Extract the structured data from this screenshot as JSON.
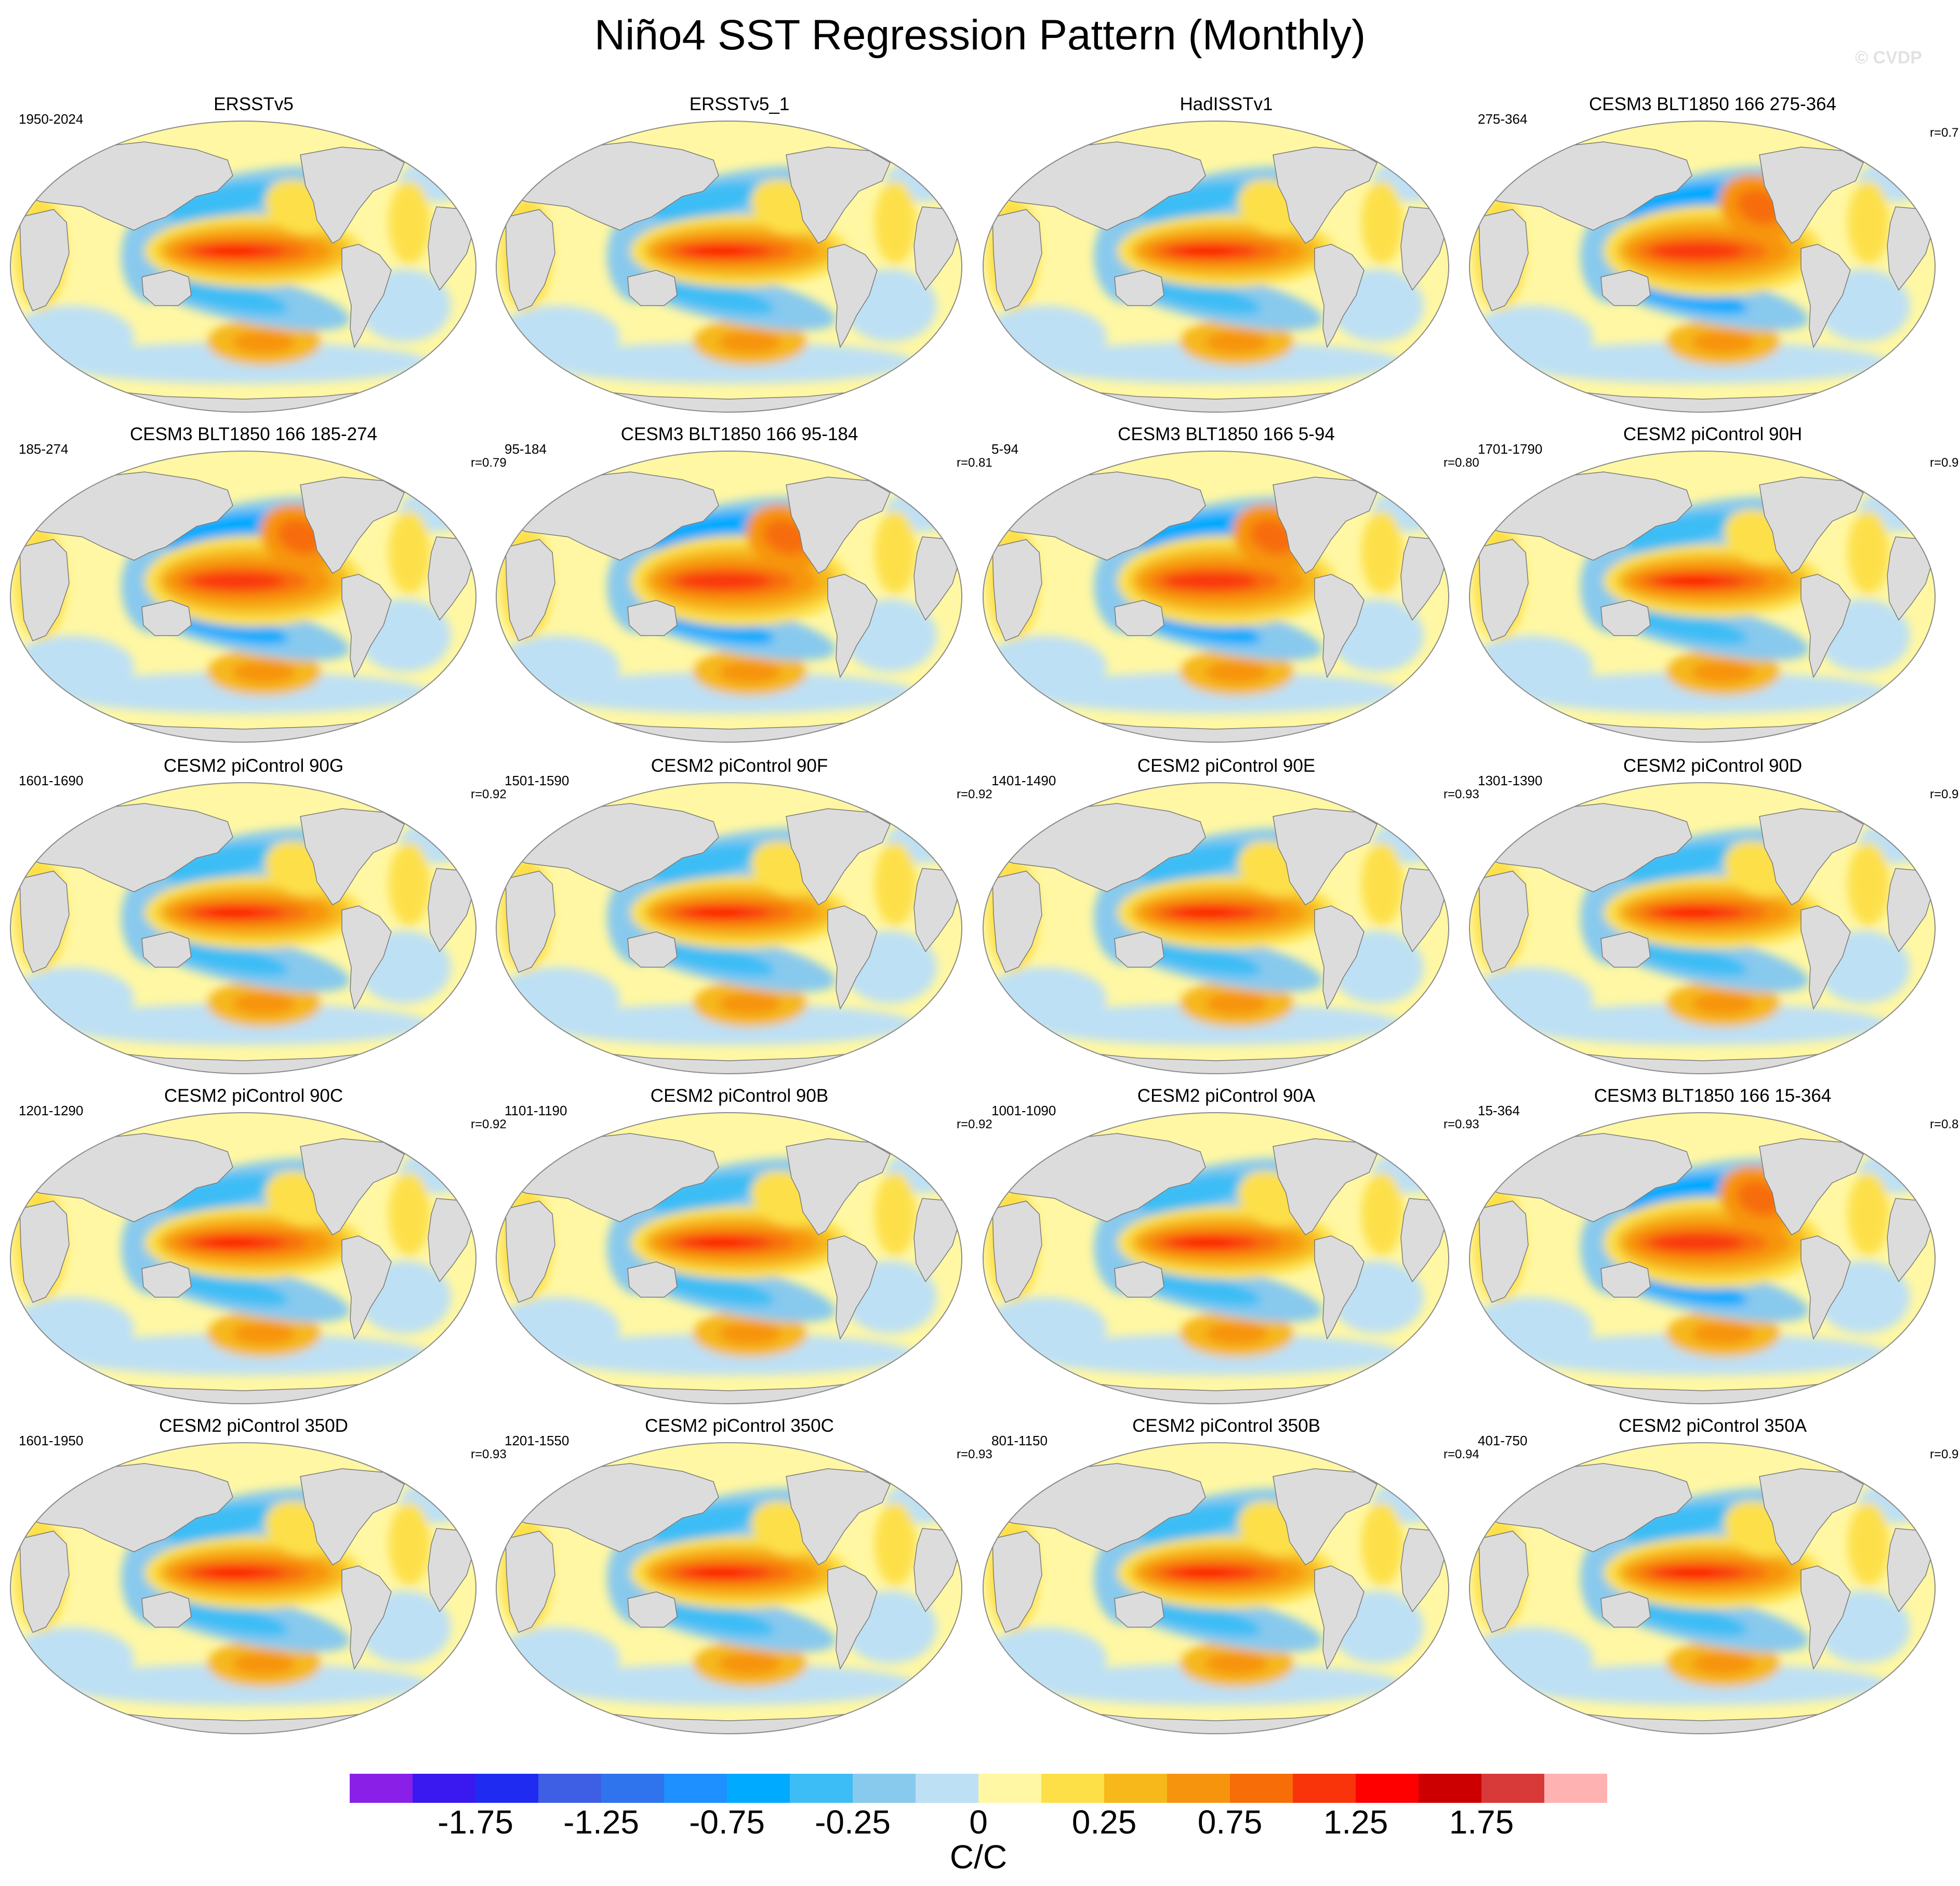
{
  "figure": {
    "title": "Niño4 SST Regression Pattern (Monthly)",
    "watermark": "© CVDP"
  },
  "panels": [
    {
      "title": "ERSSTv5",
      "years": "1950-2024",
      "corr": "",
      "style": "obs"
    },
    {
      "title": "ERSSTv5_1",
      "years": "",
      "corr": "",
      "style": "obs"
    },
    {
      "title": "HadISSTv1",
      "years": "",
      "corr": "",
      "style": "obs"
    },
    {
      "title": "CESM3 BLT1850 166 275-364",
      "years": "275-364",
      "corr": "r=0.7",
      "style": "cesm3"
    },
    {
      "title": "CESM3 BLT1850 166 185-274",
      "years": "185-274",
      "corr": "r=0.79",
      "style": "cesm3"
    },
    {
      "title": "CESM3 BLT1850 166 95-184",
      "years": "95-184",
      "corr": "r=0.81",
      "style": "cesm3"
    },
    {
      "title": "CESM3 BLT1850 166 5-94",
      "years": "5-94",
      "corr": "r=0.80",
      "style": "cesm3"
    },
    {
      "title": "CESM2 piControl 90H",
      "years": "1701-1790",
      "corr": "r=0.9",
      "style": "cesm2"
    },
    {
      "title": "CESM2 piControl 90G",
      "years": "1601-1690",
      "corr": "r=0.92",
      "style": "cesm2"
    },
    {
      "title": "CESM2 piControl 90F",
      "years": "1501-1590",
      "corr": "r=0.92",
      "style": "cesm2"
    },
    {
      "title": "CESM2 piControl 90E",
      "years": "1401-1490",
      "corr": "r=0.93",
      "style": "cesm2"
    },
    {
      "title": "CESM2 piControl 90D",
      "years": "1301-1390",
      "corr": "r=0.9",
      "style": "cesm2"
    },
    {
      "title": "CESM2 piControl 90C",
      "years": "1201-1290",
      "corr": "r=0.92",
      "style": "cesm2"
    },
    {
      "title": "CESM2 piControl 90B",
      "years": "1101-1190",
      "corr": "r=0.92",
      "style": "cesm2"
    },
    {
      "title": "CESM2 piControl 90A",
      "years": "1001-1090",
      "corr": "r=0.93",
      "style": "cesm2"
    },
    {
      "title": "CESM3 BLT1850 166 15-364",
      "years": "15-364",
      "corr": "r=0.8",
      "style": "cesm3"
    },
    {
      "title": "CESM2 piControl 350D",
      "years": "1601-1950",
      "corr": "r=0.93",
      "style": "cesm2"
    },
    {
      "title": "CESM2 piControl 350C",
      "years": "1201-1550",
      "corr": "r=0.93",
      "style": "cesm2"
    },
    {
      "title": "CESM2 piControl 350B",
      "years": "801-1150",
      "corr": "r=0.94",
      "style": "cesm2"
    },
    {
      "title": "CESM2 piControl 350A",
      "years": "401-750",
      "corr": "r=0.9",
      "style": "cesm2"
    }
  ],
  "colorbar": {
    "units": "C/C",
    "colors": [
      "#8a1fe8",
      "#3a19f0",
      "#1f2bf0",
      "#3e5ee3",
      "#2f74ec",
      "#1e90ff",
      "#00aaff",
      "#3dbdf5",
      "#88c9ee",
      "#bde0f5",
      "#fff7a3",
      "#fde048",
      "#f6b81b",
      "#f7940e",
      "#f76d08",
      "#f9340a",
      "#ff0000",
      "#cc0000",
      "#d83a3a",
      "#ffb2b2"
    ],
    "boundaries": [
      -2.25,
      -2.0,
      -1.75,
      -1.5,
      -1.25,
      -1.0,
      -0.75,
      -0.5,
      -0.25,
      -0.1,
      0,
      0.1,
      0.25,
      0.5,
      0.75,
      1.0,
      1.25,
      1.5,
      1.75,
      2.0,
      2.25
    ],
    "labels": [
      {
        "value": -1.75,
        "text": "-1.75"
      },
      {
        "value": -1.25,
        "text": "-1.25"
      },
      {
        "value": -0.75,
        "text": "-0.75"
      },
      {
        "value": -0.25,
        "text": "-0.25"
      },
      {
        "value": 0,
        "text": "0"
      },
      {
        "value": 0.25,
        "text": "0.25"
      },
      {
        "value": 0.75,
        "text": "0.75"
      },
      {
        "value": 1.25,
        "text": "1.25"
      },
      {
        "value": 1.75,
        "text": "1.75"
      }
    ]
  }
}
